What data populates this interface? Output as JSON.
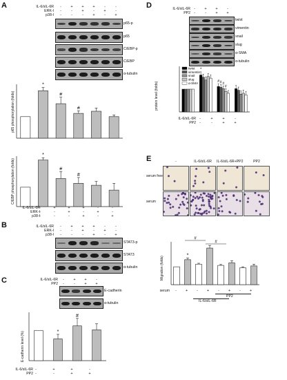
{
  "panels": {
    "A": {
      "letter": "A",
      "treatments": [
        {
          "label": "IL-6/sIL-6R",
          "signs": [
            "-",
            "+",
            "+",
            "+",
            "-",
            "-"
          ]
        },
        {
          "label": "ERK-I",
          "signs": [
            "-",
            "-",
            "+",
            "-",
            "+",
            "-"
          ]
        },
        {
          "label": "p38-I",
          "signs": [
            "-",
            "-",
            "-",
            "+",
            "-",
            "+"
          ]
        }
      ],
      "blots": [
        "p65-p",
        "p65",
        "C/EBP-p",
        "C/EBP",
        "α-tubulin"
      ],
      "chart1": {
        "ylabel": "p65 phosphorylation (folds)"
      },
      "chart2": {
        "ylabel": "C/EBP phosphorylation (folds)"
      }
    },
    "B": {
      "letter": "B",
      "treatments": [
        {
          "label": "IL-6/sIL-6R",
          "signs": [
            "-",
            "+",
            "+",
            "+",
            "-",
            "-"
          ]
        },
        {
          "label": "ERK-I",
          "signs": [
            "-",
            "-",
            "+",
            "-",
            "+",
            "-"
          ]
        },
        {
          "label": "p38-I",
          "signs": [
            "-",
            "-",
            "-",
            "+",
            "-",
            "+"
          ]
        }
      ],
      "blots": [
        "STAT3-p",
        "STAT3",
        "α-tubulin"
      ]
    },
    "C": {
      "letter": "C",
      "treatments": [
        {
          "label": "IL-6/sIL-6R",
          "signs": [
            "-",
            "+",
            "+",
            "-"
          ]
        },
        {
          "label": "PP2",
          "signs": [
            "-",
            "-",
            "+",
            "+"
          ]
        }
      ],
      "blots": [
        "E-cadherin",
        "α-tubulin"
      ],
      "chart": {
        "ylabel": "E-cadherin level (%)"
      }
    },
    "D": {
      "letter": "D",
      "treatments": [
        {
          "label": "IL-6/sIL-6R",
          "signs": [
            "-",
            "+",
            "+",
            "-"
          ]
        },
        {
          "label": "PP2",
          "signs": [
            "-",
            "-",
            "+",
            "+"
          ]
        }
      ],
      "blots": [
        "twist",
        "vimentin",
        "snail",
        "slug",
        "α-SMA",
        "α-tubulin"
      ],
      "chart": {
        "ylabel": "protein level (folds)"
      }
    },
    "E": {
      "letter": "E",
      "columns": [
        "-",
        "IL-6/sIL-6R",
        "IL-6/sIL-6R+PP2",
        "PP2"
      ],
      "rows": [
        "serum free",
        "serum"
      ],
      "chart": {
        "ylabel": "Migration (folds)"
      },
      "serum_label": "serum",
      "pp2_label": "PP2",
      "il6_label": "IL-6/sIL-6R",
      "serum_signs": [
        "-",
        "+",
        "-",
        "+",
        "-",
        "+",
        "-",
        "+"
      ]
    }
  },
  "chart_data": [
    {
      "type": "bar",
      "title": "",
      "ylabel": "p65 phosphorylation (folds)",
      "ylim": [
        0,
        2.5
      ],
      "yticks": [],
      "values": [
        1.0,
        2.2,
        1.6,
        1.15,
        1.25,
        1.0
      ],
      "errors": [
        0.0,
        0.15,
        0.3,
        0.12,
        0.15,
        0.08
      ],
      "marks": [
        "",
        "*",
        "#",
        "#",
        "",
        ""
      ],
      "colors": {
        "control": "#ffffff",
        "treated": "#bdbdbd"
      }
    },
    {
      "type": "bar",
      "title": "",
      "ylabel": "C/EBP phosphorylation (folds)",
      "ylim": [
        0,
        2.6
      ],
      "yticks": [],
      "values": [
        1.0,
        2.4,
        1.45,
        1.2,
        1.1,
        0.85
      ],
      "errors": [
        0.0,
        0.12,
        0.35,
        0.3,
        0.2,
        0.35
      ],
      "marks": [
        "",
        "*",
        "#",
        "#",
        "",
        ""
      ]
    },
    {
      "type": "bar",
      "title": "",
      "ylabel": "E-cadherin level (%)",
      "ylim": [
        0,
        160
      ],
      "yticks": [],
      "values": [
        100,
        72,
        115,
        102
      ],
      "errors": [
        0,
        15,
        25,
        20
      ],
      "marks": [
        "",
        "*",
        "#",
        ""
      ]
    },
    {
      "type": "bar",
      "title": "",
      "ylabel": "protein level (folds)",
      "ylim": [
        0,
        2.0
      ],
      "yticks": [],
      "group_count": 4,
      "series": [
        {
          "name": "twist",
          "color": "#000000",
          "values": [
            1.0,
            1.62,
            1.12,
            1.02
          ]
        },
        {
          "name": "vimentin",
          "color": "#555555",
          "values": [
            1.0,
            1.52,
            1.08,
            0.95
          ]
        },
        {
          "name": "snail",
          "color": "#8c8c8c",
          "values": [
            1.0,
            1.4,
            1.02,
            0.78
          ]
        },
        {
          "name": "slug",
          "color": "#c8c8c8",
          "values": [
            1.0,
            1.55,
            0.9,
            0.82
          ]
        },
        {
          "name": "α-SMA",
          "color": "#ffffff",
          "values": [
            1.0,
            1.48,
            0.82,
            0.75
          ]
        }
      ],
      "errors": [
        0.0,
        0.14,
        0.12,
        0.14
      ],
      "marks": [
        "",
        "*",
        "#",
        ""
      ]
    },
    {
      "type": "bar",
      "title": "",
      "ylabel": "Migration (folds)",
      "ylim": [
        0,
        2.4
      ],
      "yticks": [],
      "values": [
        1.0,
        1.4,
        1.15,
        2.05,
        1.08,
        1.22,
        0.95,
        1.05
      ],
      "errors": [
        0.0,
        0.1,
        0.05,
        0.15,
        0.05,
        0.12,
        0.05,
        0.1
      ],
      "marks": [
        "",
        "*",
        "",
        "",
        "",
        "",
        "",
        ""
      ]
    }
  ]
}
